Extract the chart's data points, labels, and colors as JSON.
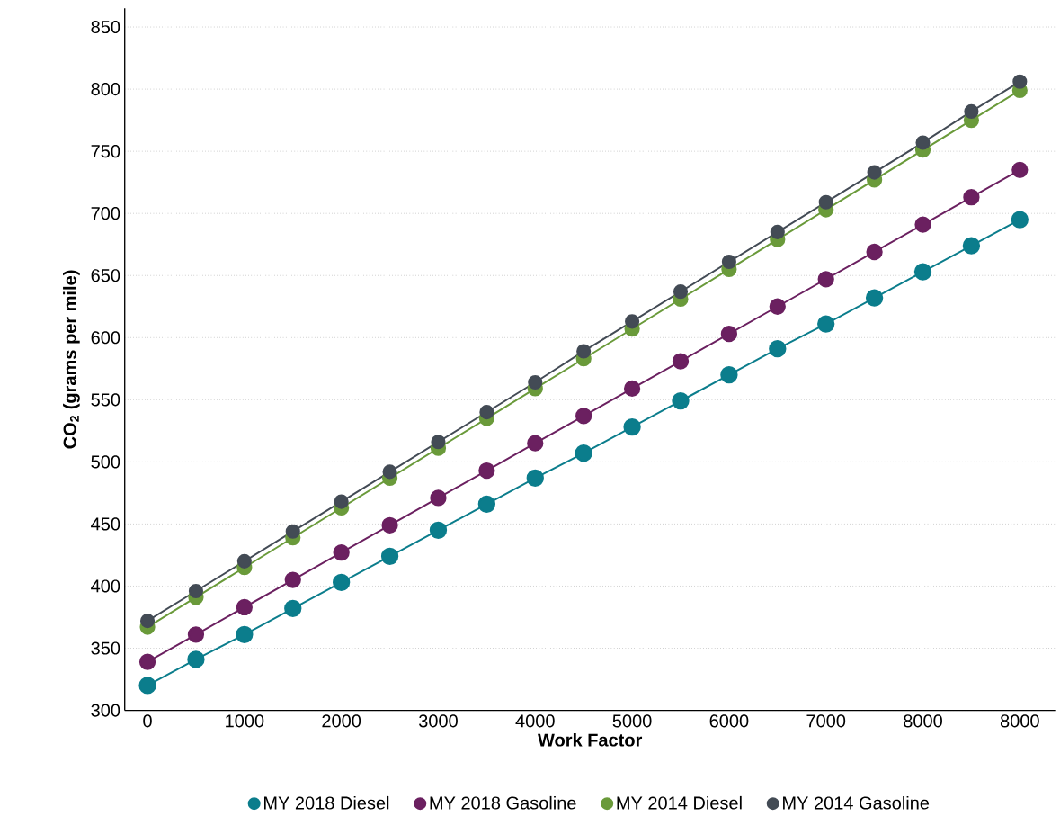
{
  "chart_data": {
    "type": "line",
    "xlabel": "Work Factor",
    "ylabel": "CO$_{2}$ (grams per mile)",
    "categories": [
      "0",
      null,
      "1000",
      null,
      "2000",
      null,
      "3000",
      null,
      "4000",
      null,
      "5000",
      null,
      "6000",
      null,
      "7000",
      null,
      "8000",
      null,
      "8000"
    ],
    "series": [
      {
        "name": "MY 2018 Diesel",
        "color": "#0b7d8c",
        "values": [
          320,
          341,
          361,
          382,
          403,
          424,
          445,
          466,
          487,
          507,
          528,
          549,
          570,
          591,
          611,
          632,
          653,
          674,
          695
        ]
      },
      {
        "name": "MY 2018 Gasoline",
        "color": "#6b2060",
        "values": [
          339,
          361,
          383,
          405,
          427,
          449,
          471,
          493,
          515,
          537,
          559,
          581,
          603,
          625,
          647,
          669,
          691,
          713,
          735
        ]
      },
      {
        "name": "MY 2014 Diesel",
        "color": "#6a9a3a",
        "values": [
          367,
          391,
          415,
          439,
          463,
          487,
          511,
          535,
          559,
          583,
          607,
          631,
          655,
          679,
          703,
          727,
          751,
          775,
          799
        ]
      },
      {
        "name": "MY 2014 Gasoline",
        "color": "#434b55",
        "values": [
          372,
          396,
          420,
          444,
          468,
          492,
          516,
          540,
          564,
          589,
          613,
          637,
          661,
          685,
          709,
          733,
          757,
          782,
          806
        ]
      }
    ],
    "ylim": [
      300,
      865
    ],
    "yticks": [
      300,
      350,
      400,
      450,
      500,
      550,
      600,
      650,
      700,
      750,
      800,
      850
    ],
    "grid": "y",
    "legend": "bottom",
    "marker": "circle",
    "line_style": "solid"
  }
}
